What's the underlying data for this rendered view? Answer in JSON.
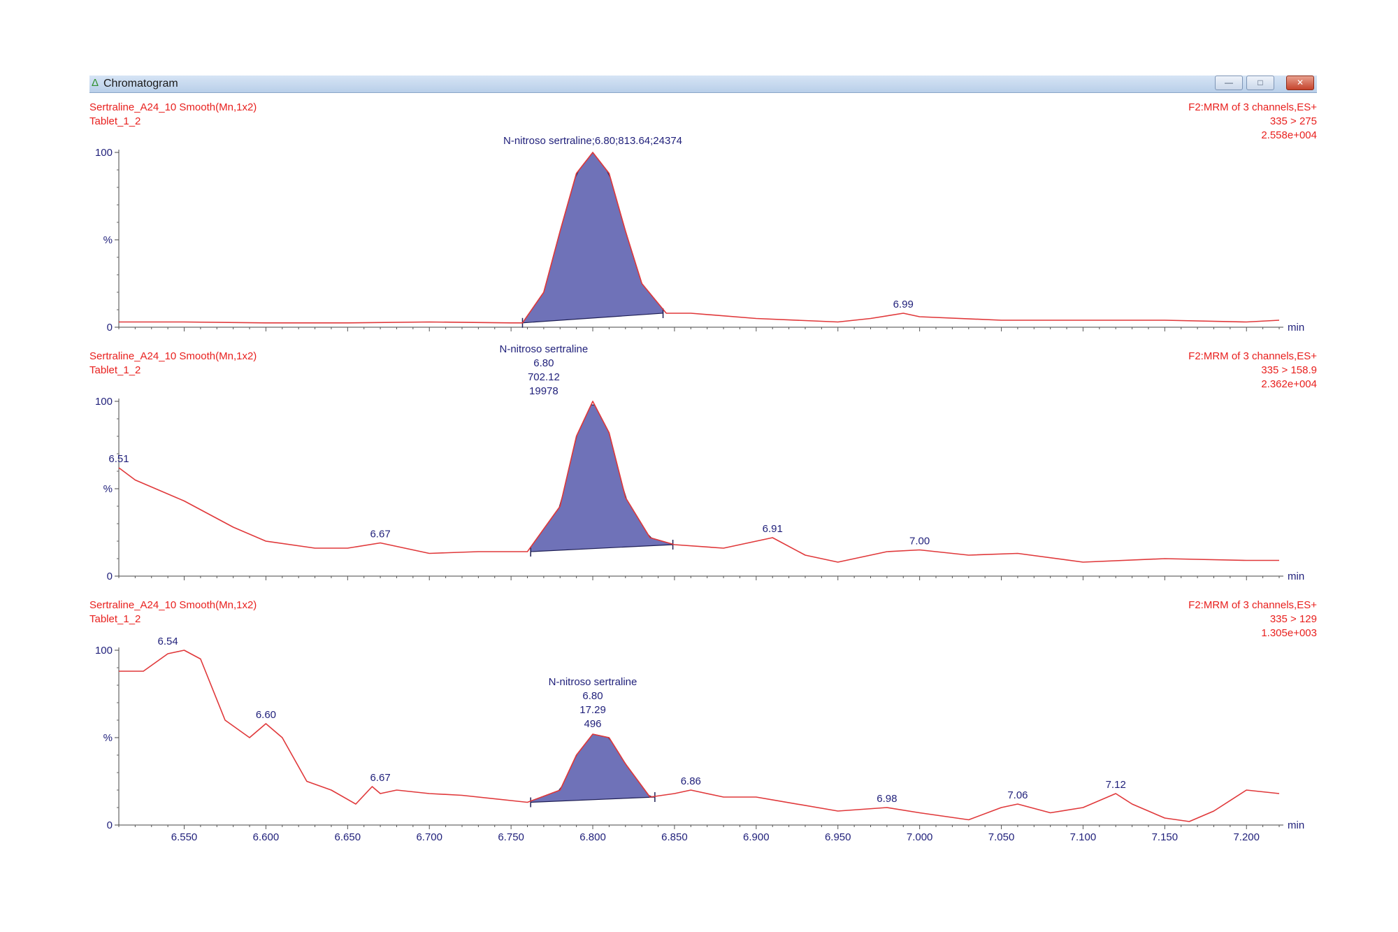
{
  "window": {
    "title": "Chromatogram",
    "minimize_icon": "minimize-icon",
    "maximize_icon": "maximize-icon",
    "close_icon": "close-icon"
  },
  "chart_data": [
    {
      "type": "line",
      "sample": "Sertraline_A24_10 Smooth(Mn,1x2)",
      "sample_id": "Tablet_1_2",
      "function": "F2:MRM of 3 channels,ES+",
      "transition": "335 > 275",
      "intensity": "2.558e+004",
      "xlabel": "min",
      "ylabel": "%",
      "ylim": [
        0,
        100
      ],
      "xlim": [
        6.51,
        7.22
      ],
      "y_ticks": [
        "0",
        "%",
        "100"
      ],
      "x": [
        6.51,
        6.55,
        6.6,
        6.65,
        6.7,
        6.75,
        6.757,
        6.77,
        6.78,
        6.79,
        6.8,
        6.81,
        6.82,
        6.83,
        6.845,
        6.86,
        6.9,
        6.95,
        6.97,
        6.99,
        7.0,
        7.05,
        7.1,
        7.15,
        7.2,
        7.22
      ],
      "y": [
        3,
        3,
        2.5,
        2.5,
        3,
        2.5,
        2.5,
        20,
        55,
        88,
        100,
        88,
        55,
        25,
        8,
        8,
        5,
        3,
        5,
        8,
        6,
        4,
        4,
        4,
        3,
        4
      ],
      "peaks": [
        {
          "rt": "6.99",
          "x": 6.99,
          "y": 8
        }
      ],
      "integrated_peak": {
        "name": "N-nitroso sertraline",
        "start": 6.757,
        "end": 6.843,
        "baseline_start_y": 2.5,
        "baseline_end_y": 8,
        "label": "N-nitroso sertraline;6.80;813.64;24374",
        "label_lines": []
      }
    },
    {
      "type": "line",
      "sample": "Sertraline_A24_10 Smooth(Mn,1x2)",
      "sample_id": "Tablet_1_2",
      "function": "F2:MRM of 3 channels,ES+",
      "transition": "335 > 158.9",
      "intensity": "2.362e+004",
      "xlabel": "min",
      "ylabel": "%",
      "ylim": [
        0,
        100
      ],
      "xlim": [
        6.51,
        7.22
      ],
      "y_ticks": [
        "0",
        "%",
        "100"
      ],
      "x": [
        6.51,
        6.52,
        6.55,
        6.58,
        6.6,
        6.63,
        6.65,
        6.67,
        6.7,
        6.73,
        6.76,
        6.78,
        6.79,
        6.8,
        6.81,
        6.82,
        6.835,
        6.85,
        6.88,
        6.91,
        6.93,
        6.95,
        6.98,
        7.0,
        7.03,
        7.06,
        7.1,
        7.15,
        7.2,
        7.22
      ],
      "y": [
        62,
        55,
        43,
        28,
        20,
        16,
        16,
        19,
        13,
        14,
        14,
        40,
        80,
        100,
        82,
        45,
        22,
        18,
        16,
        22,
        12,
        8,
        14,
        15,
        12,
        13,
        8,
        10,
        9,
        9
      ],
      "peaks": [
        {
          "rt": "6.51",
          "x": 6.51,
          "y": 62
        },
        {
          "rt": "6.67",
          "x": 6.67,
          "y": 19
        },
        {
          "rt": "6.91",
          "x": 6.91,
          "y": 22
        },
        {
          "rt": "7.00",
          "x": 7.0,
          "y": 15
        }
      ],
      "integrated_peak": {
        "name": "N-nitroso sertraline",
        "start": 6.762,
        "end": 6.849,
        "baseline_start_y": 14,
        "baseline_end_y": 18,
        "label": "",
        "label_lines": [
          "N-nitroso sertraline",
          "6.80",
          "702.12",
          "19978"
        ]
      }
    },
    {
      "type": "line",
      "sample": "Sertraline_A24_10 Smooth(Mn,1x2)",
      "sample_id": "Tablet_1_2",
      "function": "F2:MRM of 3 channels,ES+",
      "transition": "335 > 129",
      "intensity": "1.305e+003",
      "xlabel": "min",
      "ylabel": "%",
      "ylim": [
        0,
        100
      ],
      "xlim": [
        6.51,
        7.22
      ],
      "y_ticks": [
        "0",
        "%",
        "100"
      ],
      "x_tick_labels": [
        "6.550",
        "6.600",
        "6.650",
        "6.700",
        "6.750",
        "6.800",
        "6.850",
        "6.900",
        "6.950",
        "7.000",
        "7.050",
        "7.100",
        "7.150",
        "7.200"
      ],
      "x_ticks": [
        6.55,
        6.6,
        6.65,
        6.7,
        6.75,
        6.8,
        6.85,
        6.9,
        6.95,
        7.0,
        7.05,
        7.1,
        7.15,
        7.2
      ],
      "x": [
        6.51,
        6.525,
        6.54,
        6.55,
        6.56,
        6.575,
        6.59,
        6.6,
        6.61,
        6.625,
        6.64,
        6.655,
        6.665,
        6.67,
        6.68,
        6.7,
        6.72,
        6.75,
        6.76,
        6.78,
        6.79,
        6.8,
        6.81,
        6.82,
        6.835,
        6.85,
        6.86,
        6.88,
        6.9,
        6.95,
        6.98,
        7.0,
        7.03,
        7.05,
        7.06,
        7.08,
        7.1,
        7.12,
        7.13,
        7.15,
        7.165,
        7.18,
        7.2,
        7.22
      ],
      "y": [
        88,
        88,
        98,
        100,
        95,
        60,
        50,
        58,
        50,
        25,
        20,
        12,
        22,
        18,
        20,
        18,
        17,
        14,
        13,
        20,
        40,
        52,
        50,
        35,
        16,
        18,
        20,
        16,
        16,
        8,
        10,
        7,
        3,
        10,
        12,
        7,
        10,
        18,
        12,
        4,
        2,
        8,
        20,
        18
      ],
      "peaks": [
        {
          "rt": "6.54",
          "x": 6.54,
          "y": 100
        },
        {
          "rt": "6.60",
          "x": 6.6,
          "y": 58
        },
        {
          "rt": "6.67",
          "x": 6.67,
          "y": 22
        },
        {
          "rt": "6.86",
          "x": 6.86,
          "y": 20
        },
        {
          "rt": "6.98",
          "x": 6.98,
          "y": 10
        },
        {
          "rt": "7.06",
          "x": 7.06,
          "y": 12
        },
        {
          "rt": "7.12",
          "x": 7.12,
          "y": 18
        }
      ],
      "integrated_peak": {
        "name": "N-nitroso sertraline",
        "start": 6.762,
        "end": 6.838,
        "baseline_start_y": 13,
        "baseline_end_y": 16,
        "label": "",
        "label_lines": [
          "N-nitroso sertraline",
          "6.80",
          "17.29",
          "496"
        ]
      }
    }
  ]
}
